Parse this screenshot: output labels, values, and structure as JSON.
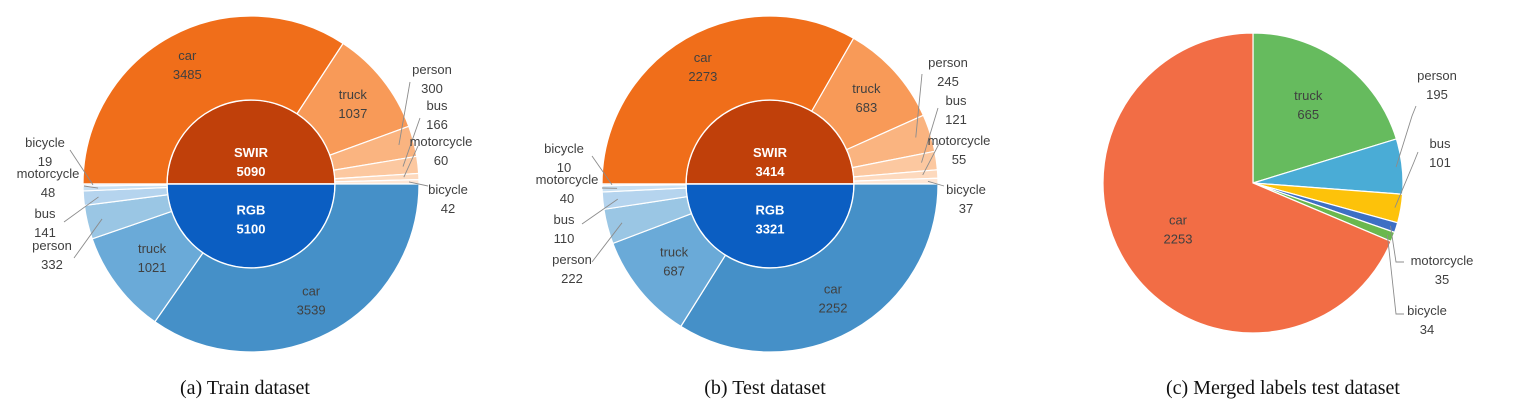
{
  "chart_data": [
    {
      "type": "pie",
      "caption": "(a) Train dataset",
      "inner": [
        {
          "name": "SWIR",
          "value": 5090,
          "color": "#c0400a"
        },
        {
          "name": "RGB",
          "value": 5100,
          "color": "#0b5ec2"
        }
      ],
      "outer_top": [
        {
          "name": "car",
          "value": 3485,
          "color": "#f06e1a"
        },
        {
          "name": "truck",
          "value": 1037,
          "color": "#f89a58"
        },
        {
          "name": "person",
          "value": 300,
          "color": "#fab480"
        },
        {
          "name": "bus",
          "value": 166,
          "color": "#fcc8a0"
        },
        {
          "name": "motorcycle",
          "value": 60,
          "color": "#fdd9bd"
        },
        {
          "name": "bicycle",
          "value": 42,
          "color": "#fee6d5"
        }
      ],
      "outer_bottom": [
        {
          "name": "car",
          "value": 3539,
          "color": "#4590c8"
        },
        {
          "name": "truck",
          "value": 1021,
          "color": "#6aaad8"
        },
        {
          "name": "person",
          "value": 332,
          "color": "#9ac6e4"
        },
        {
          "name": "bus",
          "value": 141,
          "color": "#b5d4ee"
        },
        {
          "name": "motorcycle",
          "value": 48,
          "color": "#c8e0f2"
        },
        {
          "name": "bicycle",
          "value": 19,
          "color": "#dbeaf7"
        }
      ]
    },
    {
      "type": "pie",
      "caption": "(b) Test dataset",
      "inner": [
        {
          "name": "SWIR",
          "value": 3414,
          "color": "#c0400a"
        },
        {
          "name": "RGB",
          "value": 3321,
          "color": "#0b5ec2"
        }
      ],
      "outer_top": [
        {
          "name": "car",
          "value": 2273,
          "color": "#f06e1a"
        },
        {
          "name": "truck",
          "value": 683,
          "color": "#f89a58"
        },
        {
          "name": "person",
          "value": 245,
          "color": "#fab480"
        },
        {
          "name": "bus",
          "value": 121,
          "color": "#fcc8a0"
        },
        {
          "name": "motorcycle",
          "value": 55,
          "color": "#fdd9bd"
        },
        {
          "name": "bicycle",
          "value": 37,
          "color": "#fee6d5"
        }
      ],
      "outer_bottom": [
        {
          "name": "car",
          "value": 2252,
          "color": "#4590c8"
        },
        {
          "name": "truck",
          "value": 687,
          "color": "#6aaad8"
        },
        {
          "name": "person",
          "value": 222,
          "color": "#9ac6e4"
        },
        {
          "name": "bus",
          "value": 110,
          "color": "#b5d4ee"
        },
        {
          "name": "motorcycle",
          "value": 40,
          "color": "#c8e0f2"
        },
        {
          "name": "bicycle",
          "value": 10,
          "color": "#dbeaf7"
        }
      ]
    },
    {
      "type": "pie",
      "caption": "(c) Merged labels test dataset",
      "slices": [
        {
          "name": "truck",
          "value": 665,
          "color": "#66bb5e"
        },
        {
          "name": "person",
          "value": 195,
          "color": "#4aacd6"
        },
        {
          "name": "bus",
          "value": 101,
          "color": "#fdc20a"
        },
        {
          "name": "motorcycle",
          "value": 35,
          "color": "#3d6fc4"
        },
        {
          "name": "bicycle",
          "value": 34,
          "color": "#6ab84e"
        },
        {
          "name": "car",
          "value": 2253,
          "color": "#f26d45"
        }
      ]
    }
  ]
}
